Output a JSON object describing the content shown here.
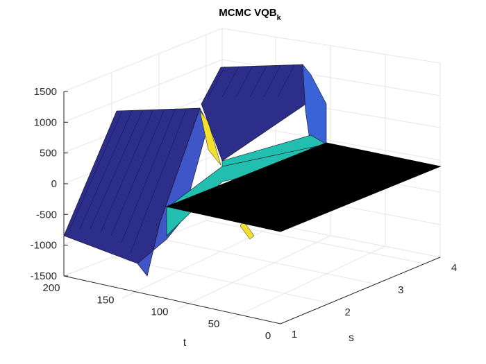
{
  "chart_data": {
    "type": "surface",
    "title_main": "MCMC VQB",
    "title_subscript": "k",
    "xlabel": "s",
    "ylabel": "t",
    "zlabel": "",
    "xlim": [
      1,
      4
    ],
    "ylim": [
      0,
      200
    ],
    "zlim": [
      -1500,
      1500
    ],
    "x_ticks": [
      "1",
      "2",
      "3",
      "4"
    ],
    "y_ticks": [
      "0",
      "50",
      "100",
      "150",
      "200"
    ],
    "z_ticks": [
      "-1500",
      "-1000",
      "-500",
      "0",
      "500",
      "1000",
      "1500"
    ],
    "grid": true,
    "colormap": "parula",
    "colors": {
      "ridge_dark": "#2b2b8c",
      "ridge_blue": "#3f5fe0",
      "teal": "#21c0b0",
      "yellow": "#f5e030",
      "black_plane": "#000000",
      "grid": "#e6e6e6",
      "axis": "#262626"
    },
    "description_values": {
      "ridge_t_left_value": -800,
      "ridge_t_right_value": 1000,
      "peak_value": 1200,
      "trough_value": -1500,
      "plateau_value": 0,
      "plateau_s_range": [
        2,
        4
      ],
      "plateau_t_range": [
        0,
        200
      ]
    }
  }
}
